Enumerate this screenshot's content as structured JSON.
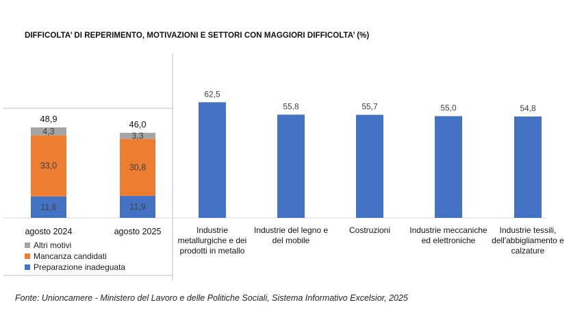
{
  "title": "DIFFICOLTA’ DI REPERIMENTO, MOTIVAZIONI E SETTORI CON MAGGIORI DIFFICOLTA’ (%)",
  "source": "Fonte: Unioncamere - Ministero del Lavoro e delle Politiche Sociali, Sistema Informativo Excelsior, 2025",
  "colors": {
    "grey": "#a5a5a5",
    "orange": "#ed7d31",
    "blue": "#4472c4"
  },
  "legend": [
    {
      "label": "Altri motivi",
      "color": "#a5a5a5"
    },
    {
      "label": "Mancanza candidati",
      "color": "#ed7d31"
    },
    {
      "label": "Preparazione inadeguata",
      "color": "#4472c4"
    }
  ],
  "chart_data": [
    {
      "type": "bar",
      "stacked": true,
      "categories": [
        "agosto 2024",
        "agosto 2025"
      ],
      "totals": [
        "48,9",
        "46,0"
      ],
      "series": [
        {
          "name": "Preparazione inadeguata",
          "values": [
            11.6,
            11.9
          ],
          "labels": [
            "11,6",
            "11,9"
          ],
          "color": "#4472c4"
        },
        {
          "name": "Mancanza candidati",
          "values": [
            33.0,
            30.8
          ],
          "labels": [
            "33,0",
            "30,8"
          ],
          "color": "#ed7d31"
        },
        {
          "name": "Altri motivi",
          "values": [
            4.3,
            3.3
          ],
          "labels": [
            "4,3",
            "3,3"
          ],
          "color": "#a5a5a5"
        }
      ],
      "legend_position": "bottom-left"
    },
    {
      "type": "bar",
      "categories": [
        [
          "Industrie",
          "metallurgiche e dei",
          "prodotti in metallo"
        ],
        [
          "Industrie del legno e",
          "del mobile"
        ],
        [
          "Costruzioni"
        ],
        [
          "Industrie meccaniche",
          "ed elettroniche"
        ],
        [
          "Industrie tessili,",
          "dell'abbigliamento e",
          "calzature"
        ]
      ],
      "values": [
        62.5,
        55.8,
        55.7,
        55.0,
        54.8
      ],
      "labels": [
        "62,5",
        "55,8",
        "55,7",
        "55,0",
        "54,8"
      ],
      "color": "#4472c4"
    }
  ]
}
